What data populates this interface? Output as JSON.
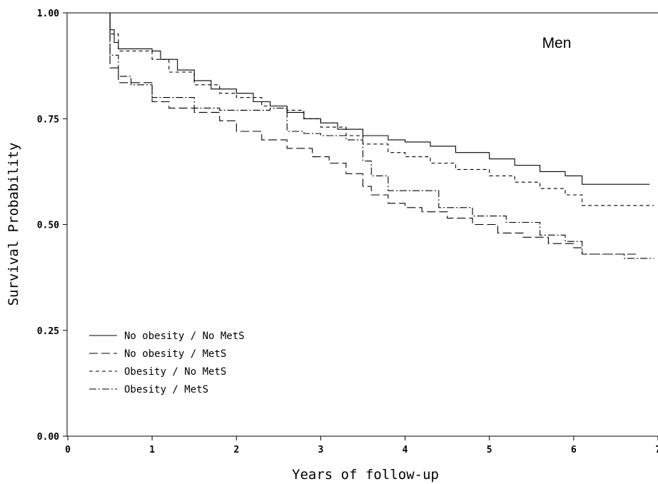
{
  "chart_data": {
    "type": "line",
    "step": true,
    "xlabel": "Years of follow-up",
    "ylabel": "Survival Probability",
    "annotation": "Men",
    "xlim": [
      0,
      7
    ],
    "ylim": [
      0,
      1
    ],
    "x_ticks": [
      "0",
      "1",
      "2",
      "3",
      "4",
      "5",
      "6",
      "7"
    ],
    "y_ticks": [
      "0.00",
      "0.25",
      "0.50",
      "0.75",
      "1.00"
    ],
    "legend_position": "bottom-left",
    "series": [
      {
        "name": "No obesity / No MetS",
        "dash": "solid",
        "x": [
          0,
          0.45,
          0.5,
          0.55,
          0.6,
          1.0,
          1.1,
          1.3,
          1.5,
          1.7,
          2.0,
          2.2,
          2.4,
          2.6,
          2.8,
          3.0,
          3.2,
          3.5,
          3.8,
          4.0,
          4.3,
          4.6,
          5.0,
          5.3,
          5.6,
          5.9,
          6.1,
          6.9
        ],
        "y": [
          1.0,
          1.0,
          0.96,
          0.93,
          0.915,
          0.91,
          0.89,
          0.865,
          0.84,
          0.82,
          0.81,
          0.79,
          0.78,
          0.765,
          0.75,
          0.74,
          0.725,
          0.71,
          0.7,
          0.695,
          0.685,
          0.67,
          0.655,
          0.64,
          0.625,
          0.615,
          0.595,
          0.595
        ]
      },
      {
        "name": "No obesity / MetS",
        "dash": "long-dash",
        "x": [
          0,
          0.45,
          0.5,
          0.6,
          0.8,
          1.0,
          1.2,
          1.5,
          1.8,
          2.0,
          2.3,
          2.6,
          2.9,
          3.1,
          3.3,
          3.5,
          3.6,
          3.8,
          4.0,
          4.2,
          4.5,
          4.8,
          5.1,
          5.4,
          5.7,
          6.0,
          6.1,
          6.75
        ],
        "y": [
          1.0,
          1.0,
          0.87,
          0.835,
          0.835,
          0.79,
          0.775,
          0.765,
          0.745,
          0.72,
          0.7,
          0.68,
          0.66,
          0.645,
          0.62,
          0.59,
          0.57,
          0.55,
          0.54,
          0.53,
          0.515,
          0.5,
          0.48,
          0.47,
          0.455,
          0.445,
          0.43,
          0.43
        ]
      },
      {
        "name": "Obesity / No MetS",
        "dash": "short-dash",
        "x": [
          0,
          0.45,
          0.5,
          0.6,
          0.9,
          1.0,
          1.2,
          1.5,
          1.8,
          2.0,
          2.3,
          2.6,
          2.8,
          3.0,
          3.3,
          3.5,
          3.8,
          4.0,
          4.3,
          4.6,
          5.0,
          5.3,
          5.6,
          5.9,
          6.1,
          6.95
        ],
        "y": [
          1.0,
          1.0,
          0.95,
          0.91,
          0.91,
          0.89,
          0.86,
          0.83,
          0.81,
          0.8,
          0.78,
          0.77,
          0.75,
          0.73,
          0.71,
          0.69,
          0.67,
          0.66,
          0.645,
          0.63,
          0.615,
          0.6,
          0.585,
          0.57,
          0.545,
          0.545
        ]
      },
      {
        "name": "Obesity / MetS",
        "dash": "dash-dot",
        "x": [
          0,
          0.45,
          0.5,
          0.6,
          0.75,
          0.95,
          1.0,
          1.2,
          1.5,
          1.8,
          2.0,
          2.2,
          2.4,
          2.6,
          2.8,
          3.0,
          3.3,
          3.5,
          3.6,
          3.8,
          4.0,
          4.2,
          4.4,
          4.8,
          5.2,
          5.6,
          5.9,
          6.1,
          6.6,
          6.95
        ],
        "y": [
          1.0,
          1.0,
          0.9,
          0.85,
          0.83,
          0.83,
          0.8,
          0.8,
          0.775,
          0.77,
          0.77,
          0.77,
          0.775,
          0.72,
          0.715,
          0.71,
          0.7,
          0.65,
          0.615,
          0.58,
          0.58,
          0.58,
          0.54,
          0.52,
          0.505,
          0.475,
          0.46,
          0.43,
          0.42,
          0.42
        ]
      }
    ]
  }
}
